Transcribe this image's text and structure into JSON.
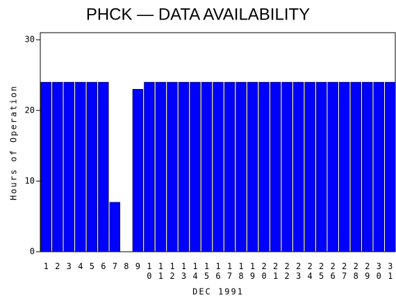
{
  "chart_data": {
    "type": "bar",
    "title": "PHCK — DATA AVAILABILITY",
    "x_label": "DEC 1991",
    "y_label": "Hours of Operation",
    "categories": [
      "1",
      "2",
      "3",
      "4",
      "5",
      "6",
      "7",
      "8",
      "9",
      "10",
      "11",
      "12",
      "13",
      "14",
      "15",
      "16",
      "17",
      "18",
      "19",
      "20",
      "21",
      "22",
      "23",
      "24",
      "25",
      "26",
      "27",
      "28",
      "29",
      "30",
      "31"
    ],
    "values": [
      24,
      24,
      24,
      24,
      24,
      24,
      7,
      0,
      23,
      24,
      24,
      24,
      24,
      24,
      24,
      24,
      24,
      24,
      24,
      24,
      24,
      24,
      24,
      24,
      24,
      24,
      24,
      24,
      24,
      24,
      24
    ],
    "color": "#0000ff",
    "ylim": [
      0,
      31
    ],
    "yticks": [
      0,
      10,
      20,
      30
    ]
  }
}
